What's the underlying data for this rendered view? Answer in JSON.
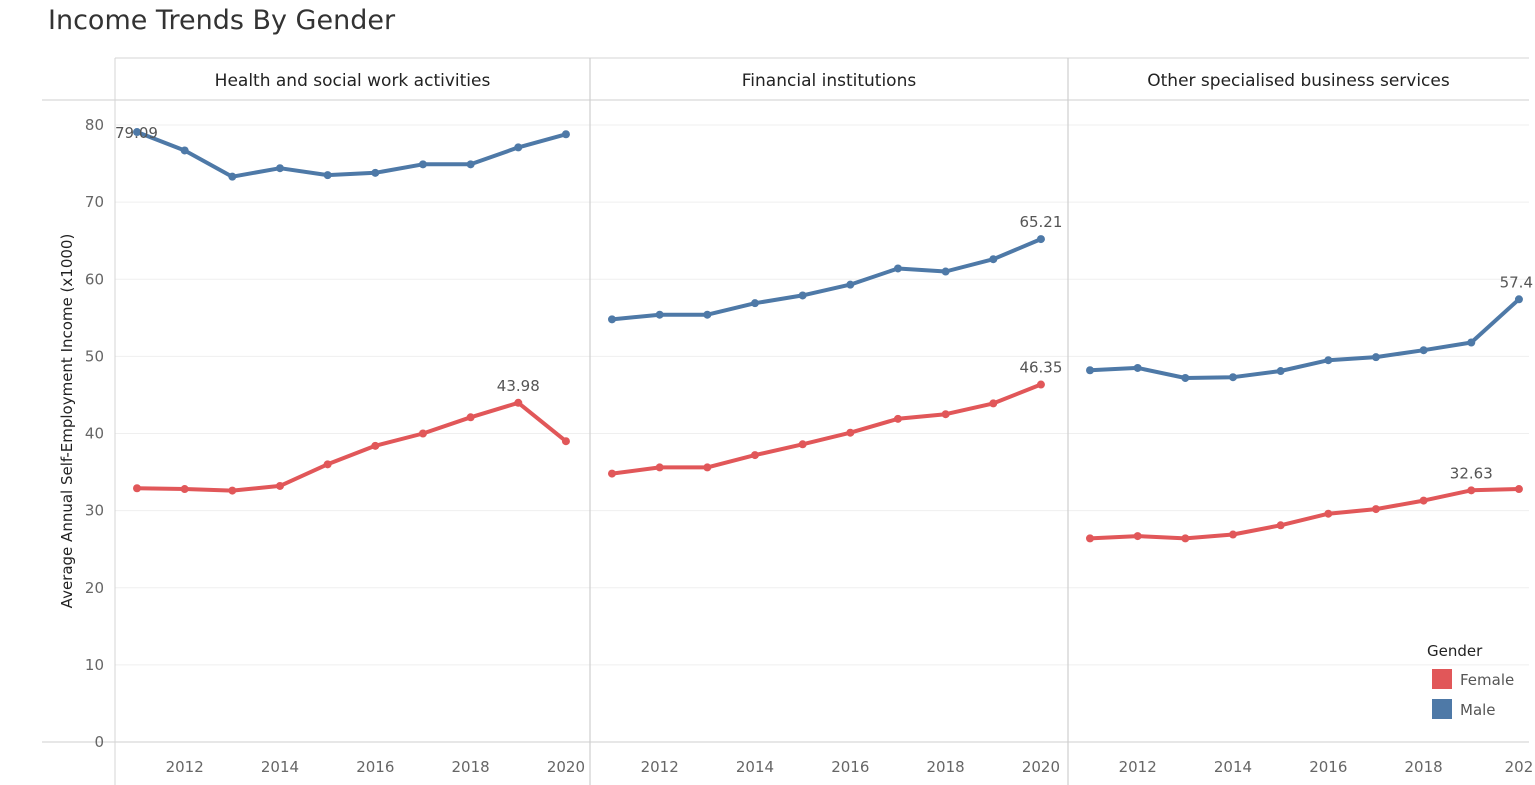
{
  "title": "Income Trends By Gender",
  "colors": {
    "Female": "#e15759",
    "Male": "#4e79a7"
  },
  "chart_data": {
    "type": "line",
    "ylabel": "Average Annual Self-Employment Income (x1000)",
    "ylim": [
      0,
      80
    ],
    "y_ticks": [
      0,
      10,
      20,
      30,
      40,
      50,
      60,
      70,
      80
    ],
    "x_ticks": [
      2012,
      2014,
      2016,
      2018,
      2020
    ],
    "x_tick_labels_last_panel": [
      "2012",
      "2014",
      "2016",
      "2018",
      "202"
    ],
    "grid": true,
    "legend": {
      "title": "Gender",
      "placement": "bottom-right",
      "entries": [
        "Female",
        "Male"
      ]
    },
    "x": [
      2011,
      2012,
      2013,
      2014,
      2015,
      2016,
      2017,
      2018,
      2019,
      2020
    ],
    "panels": [
      {
        "title": "Health and social work activities",
        "series": [
          {
            "name": "Female",
            "values": [
              32.9,
              32.8,
              32.6,
              33.2,
              36.0,
              38.4,
              40.0,
              42.1,
              43.98,
              39.0
            ]
          },
          {
            "name": "Male",
            "values": [
              79.09,
              76.7,
              73.3,
              74.4,
              73.5,
              73.8,
              74.9,
              74.9,
              77.1,
              78.8
            ]
          }
        ],
        "labels": [
          {
            "series": "Male",
            "index": 0,
            "text": "79.09"
          },
          {
            "series": "Female",
            "index": 8,
            "text": "43.98"
          }
        ]
      },
      {
        "title": "Financial institutions",
        "series": [
          {
            "name": "Female",
            "values": [
              34.8,
              35.6,
              35.6,
              37.2,
              38.6,
              40.1,
              41.9,
              42.5,
              43.9,
              46.35
            ]
          },
          {
            "name": "Male",
            "values": [
              54.8,
              55.4,
              55.4,
              56.9,
              57.9,
              59.3,
              61.4,
              61.0,
              62.6,
              65.21
            ]
          }
        ],
        "labels": [
          {
            "series": "Male",
            "index": 9,
            "text": "65.21"
          },
          {
            "series": "Female",
            "index": 9,
            "text": "46.35"
          }
        ]
      },
      {
        "title": "Other specialised business services",
        "series": [
          {
            "name": "Female",
            "values": [
              26.4,
              26.7,
              26.4,
              26.9,
              28.1,
              29.6,
              30.2,
              31.3,
              32.63,
              32.8
            ]
          },
          {
            "name": "Male",
            "values": [
              48.2,
              48.5,
              47.2,
              47.3,
              48.1,
              49.5,
              49.9,
              50.8,
              51.8,
              57.4
            ]
          }
        ],
        "labels": [
          {
            "series": "Male",
            "index": 9,
            "text": "57.4"
          },
          {
            "series": "Female",
            "index": 8,
            "text": "32.63"
          }
        ]
      }
    ]
  }
}
